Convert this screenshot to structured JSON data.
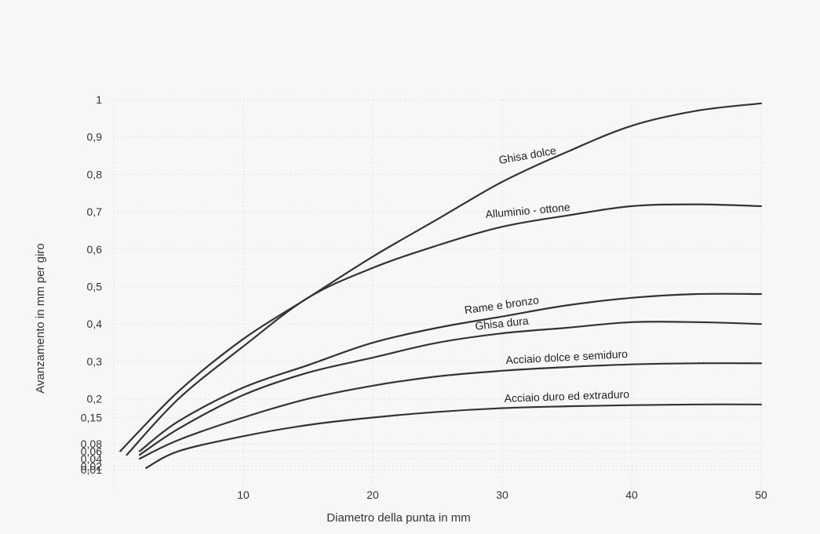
{
  "chart_data": {
    "type": "line",
    "title": "",
    "xlabel": "Diametro della punta in mm",
    "ylabel": "Avanzamento in mm per giro",
    "xlim": [
      0,
      50
    ],
    "ylim": [
      0,
      1
    ],
    "x_ticks": [
      10,
      20,
      30,
      40,
      50
    ],
    "y_ticks": [
      "0,01",
      "0,02",
      "0,04",
      "0,06",
      "0,08",
      "0,15",
      "0,2",
      "0,3",
      "0,4",
      "0,5",
      "0,6",
      "0,7",
      "0,8",
      "0,9",
      "1"
    ],
    "y_tick_values": [
      0.01,
      0.02,
      0.04,
      0.06,
      0.08,
      0.15,
      0.2,
      0.3,
      0.4,
      0.5,
      0.6,
      0.7,
      0.8,
      0.9,
      1
    ],
    "grid": true,
    "series": [
      {
        "name": "Ghisa dolce",
        "x": [
          0.5,
          5,
          10,
          15,
          20,
          25,
          30,
          35,
          40,
          45,
          50
        ],
        "y": [
          0.06,
          0.22,
          0.36,
          0.47,
          0.58,
          0.68,
          0.78,
          0.86,
          0.93,
          0.97,
          0.99
        ]
      },
      {
        "name": "Alluminio - ottone",
        "x": [
          1,
          5,
          10,
          15,
          20,
          25,
          30,
          35,
          40,
          45,
          50
        ],
        "y": [
          0.05,
          0.2,
          0.34,
          0.47,
          0.55,
          0.61,
          0.66,
          0.69,
          0.715,
          0.72,
          0.715
        ]
      },
      {
        "name": "Rame e bronzo",
        "x": [
          2,
          5,
          10,
          15,
          20,
          25,
          30,
          35,
          40,
          45,
          50
        ],
        "y": [
          0.06,
          0.14,
          0.23,
          0.29,
          0.35,
          0.39,
          0.42,
          0.45,
          0.47,
          0.48,
          0.48
        ]
      },
      {
        "name": "Ghisa dura",
        "x": [
          2,
          5,
          10,
          15,
          20,
          25,
          30,
          35,
          40,
          45,
          50
        ],
        "y": [
          0.05,
          0.12,
          0.21,
          0.27,
          0.31,
          0.35,
          0.375,
          0.39,
          0.405,
          0.405,
          0.4
        ]
      },
      {
        "name": "Acciaio dolce e semiduro",
        "x": [
          2,
          5,
          10,
          15,
          20,
          25,
          30,
          35,
          40,
          45,
          50
        ],
        "y": [
          0.04,
          0.09,
          0.15,
          0.2,
          0.235,
          0.26,
          0.275,
          0.285,
          0.292,
          0.295,
          0.295
        ]
      },
      {
        "name": "Acciaio duro ed extraduro",
        "x": [
          2.5,
          5,
          10,
          15,
          20,
          25,
          30,
          35,
          40,
          45,
          50
        ],
        "y": [
          0.015,
          0.06,
          0.1,
          0.13,
          0.15,
          0.165,
          0.175,
          0.18,
          0.183,
          0.185,
          0.185
        ]
      }
    ],
    "annotations": [
      {
        "text": "Ghisa dolce",
        "series": 0
      },
      {
        "text": "Alluminio - ottone",
        "series": 1
      },
      {
        "text": "Rame e bronzo",
        "series": 2
      },
      {
        "text": "Ghisa dura",
        "series": 3
      },
      {
        "text": "Acciaio dolce e semiduro",
        "series": 4
      },
      {
        "text": "Acciaio duro ed extraduro",
        "series": 5
      }
    ]
  }
}
